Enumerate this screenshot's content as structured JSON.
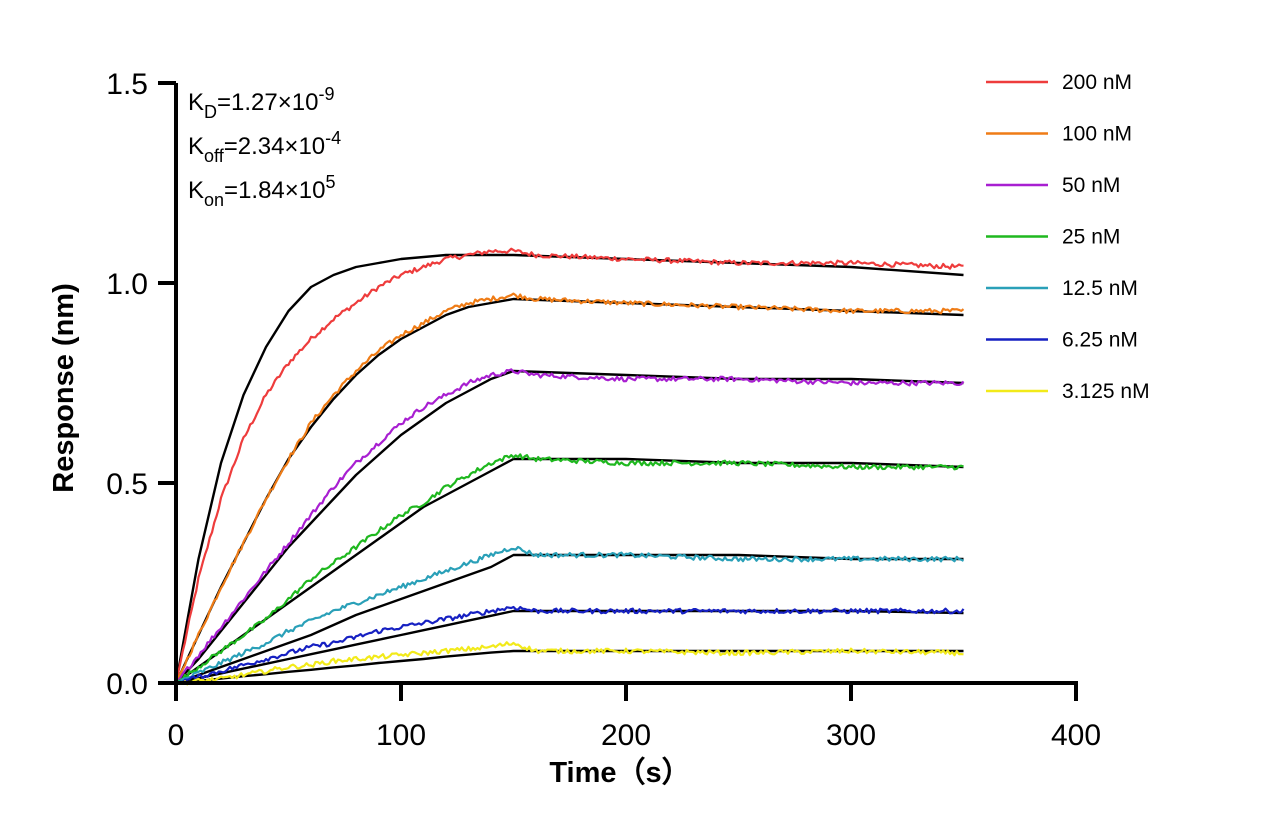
{
  "chart_data": {
    "type": "line",
    "xlabel": "Time（s）",
    "ylabel": "Response (nm)",
    "xlim": [
      0,
      400
    ],
    "ylim": [
      0,
      1.5
    ],
    "xticks": [
      "0",
      "100",
      "200",
      "300",
      "400"
    ],
    "yticks": [
      "0.0",
      "0.5",
      "1.0",
      "1.5"
    ],
    "xtick_values": [
      0,
      100,
      200,
      300,
      400
    ],
    "ytick_values": [
      0,
      0.5,
      1.0,
      1.5
    ],
    "legend_position": "right",
    "fit_color": "#000000",
    "annotations": [
      {
        "base": "K",
        "sub": "D",
        "mid": "=1.27×10",
        "sup": "-9"
      },
      {
        "base": "K",
        "sub": "off",
        "mid": "=2.34×10",
        "sup": "-4"
      },
      {
        "base": "K",
        "sub": "on",
        "mid": "=1.84×10",
        "sup": "5"
      }
    ],
    "series": [
      {
        "name": "200 nM",
        "color": "#ee3c3c",
        "points": [
          [
            0,
            0
          ],
          [
            10,
            0.26
          ],
          [
            20,
            0.46
          ],
          [
            30,
            0.61
          ],
          [
            40,
            0.72
          ],
          [
            50,
            0.8
          ],
          [
            60,
            0.86
          ],
          [
            70,
            0.91
          ],
          [
            80,
            0.95
          ],
          [
            90,
            0.99
          ],
          [
            100,
            1.02
          ],
          [
            110,
            1.04
          ],
          [
            120,
            1.06
          ],
          [
            130,
            1.07
          ],
          [
            140,
            1.08
          ],
          [
            150,
            1.08
          ],
          [
            160,
            1.07
          ],
          [
            200,
            1.06
          ],
          [
            250,
            1.05
          ],
          [
            300,
            1.05
          ],
          [
            350,
            1.04
          ]
        ],
        "fit": [
          [
            0,
            0
          ],
          [
            10,
            0.31
          ],
          [
            20,
            0.55
          ],
          [
            30,
            0.72
          ],
          [
            40,
            0.84
          ],
          [
            50,
            0.93
          ],
          [
            60,
            0.99
          ],
          [
            70,
            1.02
          ],
          [
            80,
            1.04
          ],
          [
            90,
            1.05
          ],
          [
            100,
            1.06
          ],
          [
            120,
            1.07
          ],
          [
            150,
            1.07
          ],
          [
            200,
            1.06
          ],
          [
            250,
            1.05
          ],
          [
            300,
            1.04
          ],
          [
            350,
            1.02
          ]
        ]
      },
      {
        "name": "100 nM",
        "color": "#ef7c16",
        "points": [
          [
            0,
            0
          ],
          [
            10,
            0.12
          ],
          [
            20,
            0.24
          ],
          [
            30,
            0.35
          ],
          [
            40,
            0.46
          ],
          [
            50,
            0.56
          ],
          [
            60,
            0.65
          ],
          [
            70,
            0.72
          ],
          [
            80,
            0.78
          ],
          [
            90,
            0.83
          ],
          [
            100,
            0.87
          ],
          [
            110,
            0.9
          ],
          [
            120,
            0.93
          ],
          [
            130,
            0.95
          ],
          [
            140,
            0.96
          ],
          [
            150,
            0.97
          ],
          [
            160,
            0.96
          ],
          [
            200,
            0.95
          ],
          [
            250,
            0.94
          ],
          [
            300,
            0.93
          ],
          [
            350,
            0.93
          ]
        ],
        "fit": [
          [
            0,
            0
          ],
          [
            10,
            0.12
          ],
          [
            20,
            0.24
          ],
          [
            30,
            0.35
          ],
          [
            40,
            0.46
          ],
          [
            50,
            0.56
          ],
          [
            60,
            0.64
          ],
          [
            70,
            0.71
          ],
          [
            80,
            0.77
          ],
          [
            90,
            0.82
          ],
          [
            100,
            0.86
          ],
          [
            110,
            0.89
          ],
          [
            120,
            0.92
          ],
          [
            130,
            0.94
          ],
          [
            140,
            0.95
          ],
          [
            150,
            0.96
          ],
          [
            200,
            0.95
          ],
          [
            250,
            0.94
          ],
          [
            300,
            0.93
          ],
          [
            350,
            0.92
          ]
        ]
      },
      {
        "name": "50 nM",
        "color": "#a81fd1",
        "points": [
          [
            0,
            0
          ],
          [
            10,
            0.07
          ],
          [
            20,
            0.14
          ],
          [
            30,
            0.21
          ],
          [
            40,
            0.28
          ],
          [
            50,
            0.35
          ],
          [
            60,
            0.42
          ],
          [
            70,
            0.49
          ],
          [
            80,
            0.55
          ],
          [
            90,
            0.6
          ],
          [
            100,
            0.65
          ],
          [
            110,
            0.69
          ],
          [
            120,
            0.72
          ],
          [
            130,
            0.75
          ],
          [
            140,
            0.77
          ],
          [
            150,
            0.78
          ],
          [
            160,
            0.77
          ],
          [
            200,
            0.76
          ],
          [
            250,
            0.76
          ],
          [
            300,
            0.75
          ],
          [
            350,
            0.75
          ]
        ],
        "fit": [
          [
            0,
            0
          ],
          [
            10,
            0.06
          ],
          [
            20,
            0.13
          ],
          [
            30,
            0.2
          ],
          [
            40,
            0.27
          ],
          [
            50,
            0.34
          ],
          [
            60,
            0.4
          ],
          [
            70,
            0.46
          ],
          [
            80,
            0.52
          ],
          [
            90,
            0.57
          ],
          [
            100,
            0.62
          ],
          [
            110,
            0.66
          ],
          [
            120,
            0.7
          ],
          [
            130,
            0.73
          ],
          [
            140,
            0.76
          ],
          [
            150,
            0.78
          ],
          [
            200,
            0.77
          ],
          [
            250,
            0.76
          ],
          [
            300,
            0.76
          ],
          [
            350,
            0.75
          ]
        ]
      },
      {
        "name": "25 nM",
        "color": "#1fb81f",
        "points": [
          [
            0,
            0
          ],
          [
            10,
            0.04
          ],
          [
            20,
            0.08
          ],
          [
            30,
            0.12
          ],
          [
            40,
            0.16
          ],
          [
            50,
            0.21
          ],
          [
            60,
            0.26
          ],
          [
            70,
            0.3
          ],
          [
            80,
            0.34
          ],
          [
            90,
            0.38
          ],
          [
            100,
            0.42
          ],
          [
            110,
            0.45
          ],
          [
            120,
            0.49
          ],
          [
            130,
            0.52
          ],
          [
            140,
            0.55
          ],
          [
            150,
            0.57
          ],
          [
            160,
            0.56
          ],
          [
            200,
            0.55
          ],
          [
            250,
            0.55
          ],
          [
            300,
            0.54
          ],
          [
            350,
            0.54
          ]
        ],
        "fit": [
          [
            0,
            0
          ],
          [
            10,
            0.04
          ],
          [
            20,
            0.08
          ],
          [
            30,
            0.12
          ],
          [
            40,
            0.16
          ],
          [
            50,
            0.2
          ],
          [
            60,
            0.24
          ],
          [
            70,
            0.28
          ],
          [
            80,
            0.32
          ],
          [
            90,
            0.36
          ],
          [
            100,
            0.4
          ],
          [
            110,
            0.44
          ],
          [
            120,
            0.47
          ],
          [
            130,
            0.5
          ],
          [
            140,
            0.53
          ],
          [
            150,
            0.56
          ],
          [
            200,
            0.56
          ],
          [
            250,
            0.55
          ],
          [
            300,
            0.55
          ],
          [
            350,
            0.54
          ]
        ]
      },
      {
        "name": "12.5 nM",
        "color": "#2aa0b8",
        "points": [
          [
            0,
            0
          ],
          [
            10,
            0.025
          ],
          [
            20,
            0.05
          ],
          [
            30,
            0.075
          ],
          [
            40,
            0.1
          ],
          [
            50,
            0.13
          ],
          [
            60,
            0.155
          ],
          [
            70,
            0.18
          ],
          [
            80,
            0.2
          ],
          [
            90,
            0.22
          ],
          [
            100,
            0.24
          ],
          [
            110,
            0.26
          ],
          [
            120,
            0.28
          ],
          [
            130,
            0.3
          ],
          [
            140,
            0.32
          ],
          [
            150,
            0.34
          ],
          [
            160,
            0.32
          ],
          [
            200,
            0.32
          ],
          [
            250,
            0.31
          ],
          [
            300,
            0.31
          ],
          [
            350,
            0.31
          ]
        ],
        "fit": [
          [
            0,
            0
          ],
          [
            10,
            0.02
          ],
          [
            20,
            0.04
          ],
          [
            30,
            0.06
          ],
          [
            40,
            0.08
          ],
          [
            50,
            0.1
          ],
          [
            60,
            0.12
          ],
          [
            70,
            0.145
          ],
          [
            80,
            0.17
          ],
          [
            90,
            0.19
          ],
          [
            100,
            0.21
          ],
          [
            110,
            0.23
          ],
          [
            120,
            0.25
          ],
          [
            130,
            0.27
          ],
          [
            140,
            0.29
          ],
          [
            150,
            0.32
          ],
          [
            200,
            0.32
          ],
          [
            250,
            0.32
          ],
          [
            300,
            0.31
          ],
          [
            350,
            0.31
          ]
        ]
      },
      {
        "name": "6.25 nM",
        "color": "#1620c2",
        "points": [
          [
            0,
            0
          ],
          [
            10,
            0.015
          ],
          [
            20,
            0.03
          ],
          [
            30,
            0.045
          ],
          [
            40,
            0.06
          ],
          [
            50,
            0.075
          ],
          [
            60,
            0.09
          ],
          [
            70,
            0.1
          ],
          [
            80,
            0.115
          ],
          [
            90,
            0.13
          ],
          [
            100,
            0.14
          ],
          [
            110,
            0.15
          ],
          [
            120,
            0.16
          ],
          [
            130,
            0.17
          ],
          [
            140,
            0.18
          ],
          [
            150,
            0.19
          ],
          [
            160,
            0.18
          ],
          [
            200,
            0.18
          ],
          [
            250,
            0.18
          ],
          [
            300,
            0.18
          ],
          [
            350,
            0.18
          ]
        ],
        "fit": [
          [
            0,
            0
          ],
          [
            10,
            0.012
          ],
          [
            20,
            0.024
          ],
          [
            30,
            0.036
          ],
          [
            40,
            0.048
          ],
          [
            50,
            0.06
          ],
          [
            60,
            0.072
          ],
          [
            70,
            0.084
          ],
          [
            80,
            0.096
          ],
          [
            90,
            0.108
          ],
          [
            100,
            0.12
          ],
          [
            110,
            0.132
          ],
          [
            120,
            0.144
          ],
          [
            130,
            0.156
          ],
          [
            140,
            0.168
          ],
          [
            150,
            0.18
          ],
          [
            200,
            0.18
          ],
          [
            250,
            0.18
          ],
          [
            300,
            0.18
          ],
          [
            350,
            0.175
          ]
        ]
      },
      {
        "name": "3.125 nM",
        "color": "#f2ea1a",
        "points": [
          [
            0,
            0
          ],
          [
            10,
            0.005
          ],
          [
            20,
            0.01
          ],
          [
            30,
            0.02
          ],
          [
            40,
            0.03
          ],
          [
            50,
            0.04
          ],
          [
            60,
            0.045
          ],
          [
            70,
            0.055
          ],
          [
            80,
            0.06
          ],
          [
            90,
            0.065
          ],
          [
            100,
            0.07
          ],
          [
            110,
            0.075
          ],
          [
            120,
            0.08
          ],
          [
            130,
            0.085
          ],
          [
            140,
            0.09
          ],
          [
            150,
            0.1
          ],
          [
            160,
            0.08
          ],
          [
            200,
            0.08
          ],
          [
            250,
            0.075
          ],
          [
            300,
            0.08
          ],
          [
            350,
            0.075
          ]
        ],
        "fit": [
          [
            0,
            0
          ],
          [
            10,
            0.005
          ],
          [
            20,
            0.011
          ],
          [
            30,
            0.017
          ],
          [
            40,
            0.022
          ],
          [
            50,
            0.028
          ],
          [
            60,
            0.033
          ],
          [
            70,
            0.039
          ],
          [
            80,
            0.044
          ],
          [
            90,
            0.05
          ],
          [
            100,
            0.055
          ],
          [
            110,
            0.06
          ],
          [
            120,
            0.066
          ],
          [
            130,
            0.071
          ],
          [
            140,
            0.076
          ],
          [
            150,
            0.08
          ],
          [
            200,
            0.08
          ],
          [
            250,
            0.08
          ],
          [
            300,
            0.08
          ],
          [
            350,
            0.08
          ]
        ]
      }
    ]
  }
}
